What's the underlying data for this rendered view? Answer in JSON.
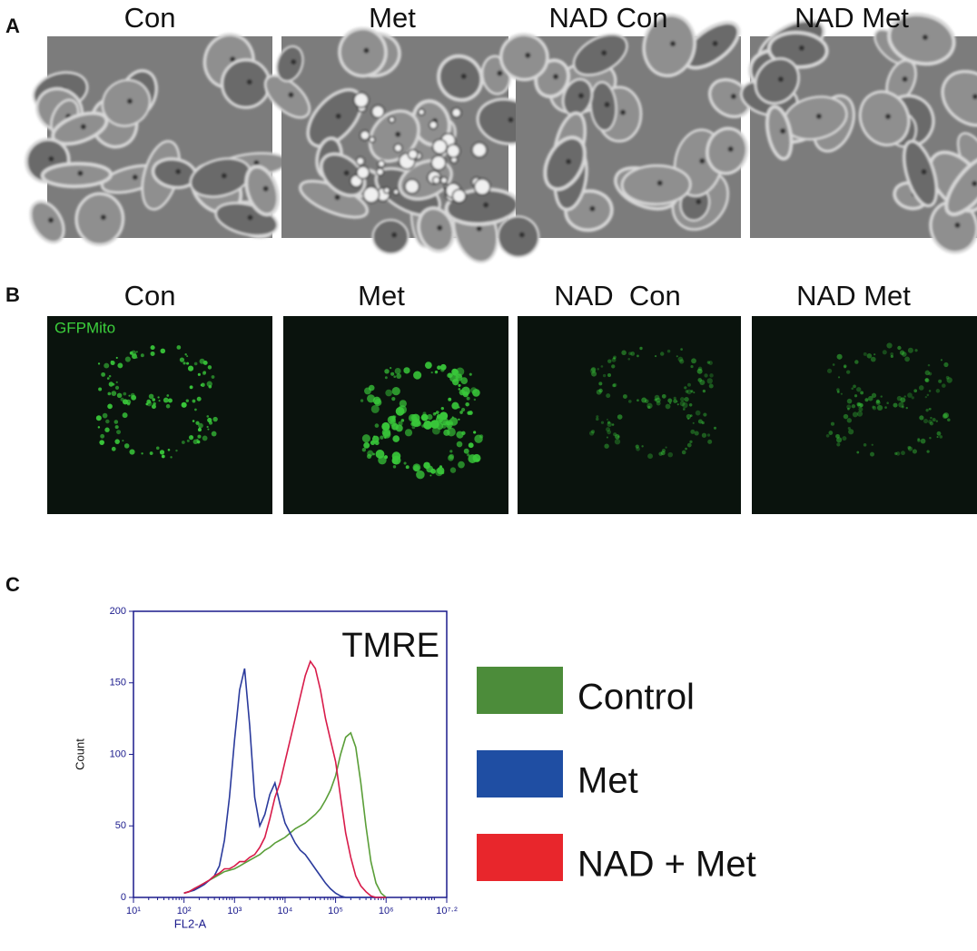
{
  "panel_labels": [
    "A",
    "B",
    "C"
  ],
  "panel_a_titles": [
    "Con",
    "Met",
    "NAD Con",
    "NAD Met"
  ],
  "panel_b_titles": [
    "Con",
    "Met",
    "NAD  Con",
    "NAD Met"
  ],
  "panel_b_annotation": "GFPMito",
  "chart_data": {
    "type": "line",
    "annotation": "TMRE",
    "xlabel": "FL2-A",
    "ylabel": "Count",
    "xscale": "log",
    "xlim": [
      10,
      15848932
    ],
    "xticks": [
      {
        "value": 10,
        "label": "10¹"
      },
      {
        "value": 100,
        "label": "10²"
      },
      {
        "value": 1000,
        "label": "10³"
      },
      {
        "value": 10000,
        "label": "10⁴"
      },
      {
        "value": 100000,
        "label": "10⁵"
      },
      {
        "value": 1000000,
        "label": "10⁶"
      },
      {
        "value": 15848932,
        "label": "10⁷·²"
      }
    ],
    "ylim": [
      0,
      200
    ],
    "yticks": [
      0,
      50,
      100,
      150,
      200
    ],
    "x": [
      100,
      126,
      158,
      200,
      251,
      316,
      398,
      501,
      631,
      794,
      1000,
      1259,
      1585,
      1995,
      2512,
      3162,
      3981,
      5012,
      6310,
      7943,
      10000,
      12589,
      15849,
      19953,
      25119,
      31623,
      39811,
      50119,
      63096,
      79433,
      100000,
      125893,
      158489,
      199526,
      251189,
      316228,
      398107,
      501187,
      630957,
      794328,
      1000000
    ],
    "series": [
      {
        "name": "Control",
        "color": "#5a9e38",
        "values": [
          3,
          4,
          6,
          8,
          10,
          12,
          14,
          16,
          18,
          19,
          20,
          22,
          24,
          26,
          28,
          30,
          33,
          35,
          38,
          40,
          42,
          45,
          48,
          50,
          52,
          55,
          58,
          62,
          68,
          75,
          85,
          100,
          112,
          115,
          105,
          80,
          50,
          25,
          10,
          3,
          0
        ]
      },
      {
        "name": "Met",
        "color": "#2a3a9c",
        "values": [
          3,
          4,
          5,
          7,
          9,
          12,
          15,
          22,
          40,
          70,
          110,
          145,
          160,
          120,
          70,
          50,
          58,
          72,
          80,
          65,
          52,
          45,
          38,
          33,
          30,
          25,
          20,
          15,
          10,
          6,
          3,
          1,
          0,
          0,
          0,
          0,
          0,
          0,
          0,
          0,
          0
        ]
      },
      {
        "name": "NAD + Met",
        "color": "#d81b4a",
        "values": [
          3,
          4,
          6,
          8,
          10,
          12,
          15,
          17,
          20,
          20,
          22,
          25,
          25,
          28,
          30,
          35,
          42,
          55,
          70,
          80,
          95,
          110,
          125,
          140,
          155,
          165,
          160,
          145,
          125,
          110,
          95,
          70,
          45,
          28,
          15,
          8,
          4,
          1,
          0,
          0,
          0
        ]
      }
    ],
    "legend_colors": [
      "#4c8c3a",
      "#1f4ea3",
      "#e8262c"
    ]
  }
}
